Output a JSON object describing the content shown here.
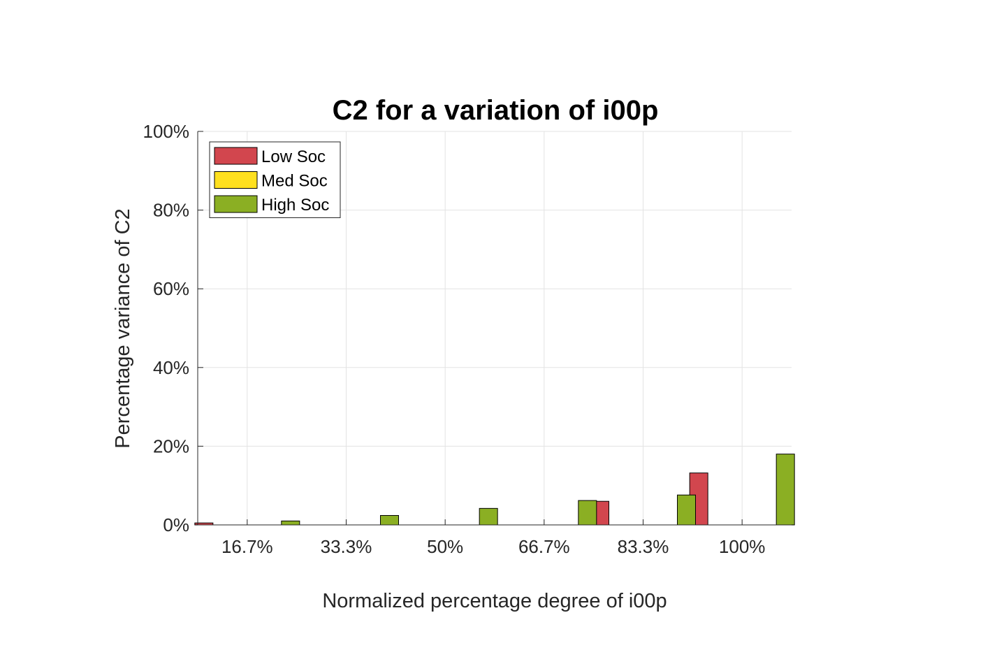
{
  "chart_data": {
    "type": "bar",
    "title": "C2 for a variation of i00p",
    "xlabel": "Normalized percentage degree of i00p",
    "ylabel": "Percentage variance of C2",
    "categories": [
      "16.7%",
      "33.3%",
      "50%",
      "66.7%",
      "83.3%",
      "100%"
    ],
    "series": [
      {
        "name": "Low Soc",
        "color": "#D2464E",
        "values": [
          0.5,
          0.05,
          0.05,
          0.05,
          6.0,
          13.2
        ]
      },
      {
        "name": "Med Soc",
        "color": "#FFE01F",
        "values": [
          0.0,
          0.0,
          0.0,
          0.0,
          0.0,
          0.0
        ]
      },
      {
        "name": "High Soc",
        "color": "#8BAF23",
        "values": [
          1.0,
          2.4,
          4.2,
          6.2,
          7.6,
          18.0
        ]
      }
    ],
    "ylim": [
      0,
      100
    ],
    "yticks": [
      0,
      20,
      40,
      60,
      80,
      100
    ],
    "ytick_labels": [
      "0%",
      "20%",
      "40%",
      "60%",
      "80%",
      "100%"
    ],
    "grid": true,
    "legend_position": "top-left"
  }
}
